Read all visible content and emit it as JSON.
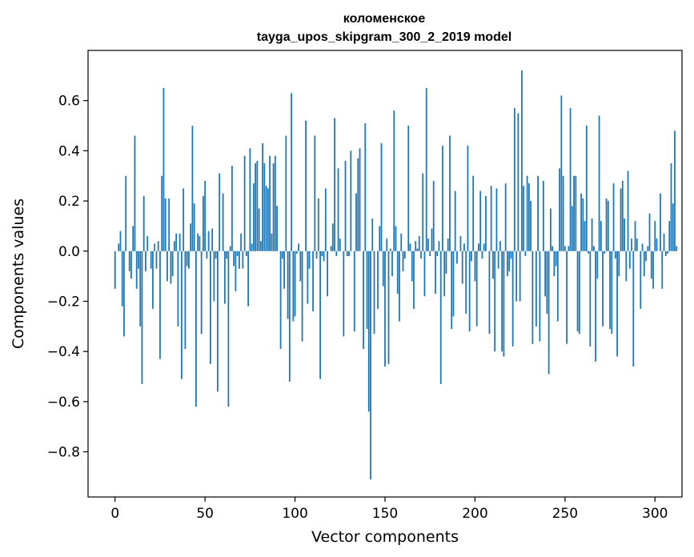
{
  "chart_data": {
    "type": "bar",
    "title": "коломенское",
    "subtitle": "tayga_upos_skipgram_300_2_2019 model",
    "xlabel": "Vector components",
    "ylabel": "Components values",
    "xlim": [
      -15,
      315
    ],
    "ylim": [
      -0.98,
      0.8
    ],
    "xticks": [
      0,
      50,
      100,
      150,
      200,
      250,
      300
    ],
    "yticks": [
      -0.8,
      -0.6,
      -0.4,
      -0.2,
      0.0,
      0.2,
      0.4,
      0.6
    ],
    "ytick_labels": [
      "−0.8",
      "−0.6",
      "−0.4",
      "−0.2",
      "0.0",
      "0.2",
      "0.4",
      "0.6"
    ],
    "bar_color": "#1f77b4",
    "grid": false,
    "legend": "none",
    "values": [
      -0.15,
      0.0,
      0.03,
      0.08,
      -0.22,
      -0.34,
      0.3,
      0.0,
      -0.08,
      -0.11,
      0.1,
      0.46,
      -0.15,
      -0.07,
      -0.3,
      -0.53,
      0.22,
      -0.08,
      0.06,
      0.0,
      -0.07,
      -0.23,
      0.03,
      -0.07,
      0.04,
      -0.43,
      0.3,
      0.65,
      0.21,
      -0.12,
      0.21,
      -0.13,
      -0.1,
      0.04,
      0.07,
      -0.3,
      0.07,
      -0.51,
      0.25,
      -0.39,
      -0.06,
      -0.07,
      0.11,
      0.5,
      0.19,
      -0.62,
      0.07,
      0.06,
      -0.33,
      0.22,
      0.28,
      -0.03,
      0.08,
      -0.45,
      0.09,
      -0.2,
      -0.03,
      -0.56,
      0.31,
      0.0,
      0.23,
      -0.21,
      -0.03,
      -0.62,
      0.02,
      0.34,
      -0.06,
      -0.16,
      -0.02,
      -0.07,
      0.07,
      -0.07,
      0.38,
      -0.02,
      -0.22,
      0.41,
      0.03,
      0.27,
      0.35,
      0.36,
      0.17,
      0.04,
      0.43,
      0.35,
      0.26,
      0.25,
      0.38,
      0.07,
      0.35,
      0.38,
      0.18,
      0.0,
      -0.39,
      -0.03,
      -0.15,
      0.46,
      -0.27,
      -0.52,
      0.63,
      -0.28,
      -0.26,
      -0.01,
      0.03,
      -0.12,
      -0.36,
      0.0,
      0.52,
      -0.21,
      -0.07,
      0.0,
      -0.24,
      0.46,
      -0.03,
      0.21,
      -0.51,
      -0.02,
      -0.04,
      0.25,
      -0.18,
      0.0,
      0.02,
      0.11,
      0.53,
      -0.02,
      0.33,
      0.05,
      0.0,
      -0.34,
      0.36,
      -0.02,
      -0.02,
      0.4,
      0.0,
      -0.32,
      0.23,
      0.37,
      0.41,
      0.0,
      -0.39,
      0.51,
      -0.31,
      -0.64,
      -0.91,
      0.13,
      -0.33,
      0.0,
      -0.23,
      0.1,
      0.43,
      -0.14,
      -0.46,
      0.05,
      -0.45,
      0.01,
      -0.1,
      0.56,
      0.1,
      -0.17,
      -0.28,
      0.07,
      -0.08,
      -0.03,
      0.0,
      0.5,
      0.03,
      -0.12,
      -0.23,
      0.04,
      0.01,
      0.06,
      -0.03,
      0.31,
      -0.18,
      0.65,
      0.05,
      -0.02,
      0.09,
      0.28,
      -0.17,
      -0.02,
      0.04,
      -0.53,
      0.42,
      -0.18,
      -0.09,
      0.05,
      0.46,
      -0.31,
      -0.26,
      0.24,
      -0.05,
      0.0,
      0.06,
      -0.13,
      0.03,
      -0.25,
      0.42,
      -0.32,
      -0.04,
      0.3,
      -0.12,
      -0.3,
      0.03,
      0.24,
      -0.03,
      0.03,
      0.22,
      0.0,
      -0.33,
      0.26,
      -0.11,
      -0.4,
      0.25,
      -0.07,
      0.04,
      -0.4,
      -0.42,
      0.27,
      -0.1,
      -0.08,
      -0.03,
      -0.38,
      0.57,
      -0.2,
      0.55,
      -0.2,
      0.72,
      0.26,
      -0.02,
      0.3,
      0.27,
      0.2,
      -0.37,
      0.0,
      -0.3,
      0.3,
      -0.36,
      0.0,
      0.28,
      -0.18,
      -0.25,
      -0.49,
      0.17,
      0.02,
      -0.1,
      -0.06,
      -0.28,
      0.33,
      0.62,
      0.3,
      0.02,
      -0.37,
      0.02,
      0.57,
      0.18,
      0.3,
      0.3,
      -0.32,
      -0.33,
      0.23,
      0.21,
      0.12,
      0.5,
      -0.01,
      -0.38,
      0.13,
      0.02,
      -0.44,
      -0.11,
      0.54,
      0.12,
      -0.3,
      -0.01,
      0.21,
      0.2,
      -0.31,
      -0.33,
      0.27,
      -0.03,
      -0.42,
      -0.1,
      0.25,
      0.28,
      0.13,
      -0.12,
      0.32,
      -0.07,
      0.05,
      -0.46,
      0.12,
      0.05,
      0.0,
      -0.23,
      0.03,
      -0.1,
      -0.04,
      0.02,
      0.15,
      -0.11,
      -0.15,
      0.12,
      0.05,
      0.0,
      0.23,
      -0.15,
      0.07,
      -0.02,
      -0.01,
      0.12,
      0.35,
      0.19,
      0.48,
      0.02
    ]
  }
}
